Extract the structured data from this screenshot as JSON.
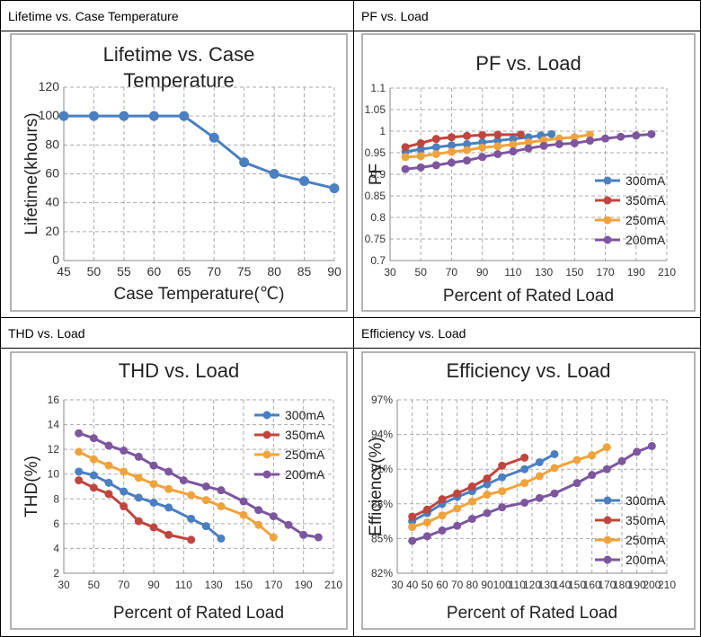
{
  "colors": {
    "s300": "#4a7fc1",
    "s350": "#c0453e",
    "s250": "#f0a33c",
    "s200": "#7d569e",
    "blue": "#4a7fc1"
  },
  "panels": [
    {
      "header": "Lifetime vs. Case Temperature"
    },
    {
      "header": "PF vs. Load"
    },
    {
      "header": "THD vs. Load"
    },
    {
      "header": "Efficiency vs. Load"
    }
  ],
  "chart_data": [
    {
      "type": "line",
      "title_lines": [
        "Lifetime vs. Case",
        "Temperature"
      ],
      "xlabel": "Case Temperature(℃)",
      "ylabel": "Lifetime(khours)",
      "xlim": [
        45,
        90
      ],
      "ylim": [
        0,
        120
      ],
      "x_ticks": [
        "45",
        "50",
        "55",
        "60",
        "65",
        "70",
        "75",
        "80",
        "85",
        "90"
      ],
      "y_ticks": [
        "0",
        "20",
        "40",
        "60",
        "80",
        "100",
        "120"
      ],
      "grid": true,
      "series": [
        {
          "values": [
            [
              45,
              100
            ],
            [
              50,
              100
            ],
            [
              55,
              100
            ],
            [
              60,
              100
            ],
            [
              65,
              100
            ],
            [
              70,
              85
            ],
            [
              75,
              68
            ],
            [
              80,
              60
            ],
            [
              85,
              55
            ],
            [
              90,
              50
            ]
          ]
        }
      ]
    },
    {
      "type": "line",
      "title_lines": [
        "PF vs. Load"
      ],
      "xlabel": "Percent of Rated Load",
      "ylabel": "PF",
      "xlim": [
        30,
        210
      ],
      "ylim": [
        0.7,
        1.1
      ],
      "x_ticks": [
        "30",
        "50",
        "70",
        "90",
        "110",
        "130",
        "150",
        "170",
        "190",
        "210"
      ],
      "y_ticks": [
        "0.7",
        "0.75",
        "0.8",
        "0.85",
        "0.9",
        "0.95",
        "1",
        "1.05",
        "1.1"
      ],
      "grid": true,
      "legend_position": "lower-right",
      "series": [
        {
          "name": "300mA",
          "values": [
            [
              40,
              0.952
            ],
            [
              50,
              0.958
            ],
            [
              60,
              0.963
            ],
            [
              70,
              0.967
            ],
            [
              80,
              0.97
            ],
            [
              90,
              0.974
            ],
            [
              100,
              0.978
            ],
            [
              110,
              0.982
            ],
            [
              120,
              0.986
            ],
            [
              128,
              0.99
            ],
            [
              135,
              0.993
            ]
          ]
        },
        {
          "name": "350mA",
          "values": [
            [
              40,
              0.963
            ],
            [
              50,
              0.972
            ],
            [
              60,
              0.982
            ],
            [
              70,
              0.986
            ],
            [
              80,
              0.989
            ],
            [
              90,
              0.991
            ],
            [
              100,
              0.992
            ],
            [
              115,
              0.992
            ]
          ]
        },
        {
          "name": "250mA",
          "values": [
            [
              40,
              0.94
            ],
            [
              50,
              0.942
            ],
            [
              60,
              0.947
            ],
            [
              70,
              0.952
            ],
            [
              80,
              0.956
            ],
            [
              90,
              0.962
            ],
            [
              100,
              0.965
            ],
            [
              110,
              0.969
            ],
            [
              120,
              0.974
            ],
            [
              130,
              0.979
            ],
            [
              140,
              0.983
            ],
            [
              150,
              0.986
            ],
            [
              160,
              0.992
            ]
          ]
        },
        {
          "name": "200mA",
          "values": [
            [
              40,
              0.912
            ],
            [
              50,
              0.916
            ],
            [
              60,
              0.921
            ],
            [
              70,
              0.927
            ],
            [
              80,
              0.932
            ],
            [
              90,
              0.94
            ],
            [
              100,
              0.947
            ],
            [
              110,
              0.953
            ],
            [
              120,
              0.96
            ],
            [
              130,
              0.966
            ],
            [
              140,
              0.97
            ],
            [
              150,
              0.972
            ],
            [
              160,
              0.978
            ],
            [
              170,
              0.983
            ],
            [
              180,
              0.987
            ],
            [
              190,
              0.99
            ],
            [
              200,
              0.993
            ]
          ]
        }
      ]
    },
    {
      "type": "line",
      "title_lines": [
        "THD vs. Load"
      ],
      "xlabel": "Percent of Rated Load",
      "ylabel": "THD(%)",
      "xlim": [
        30,
        210
      ],
      "ylim": [
        2,
        16
      ],
      "x_ticks": [
        "30",
        "50",
        "70",
        "90",
        "110",
        "130",
        "150",
        "170",
        "190",
        "210"
      ],
      "y_ticks": [
        "2",
        "4",
        "6",
        "8",
        "10",
        "12",
        "14",
        "16"
      ],
      "grid": true,
      "legend_position": "top-right",
      "series": [
        {
          "name": "300mA",
          "values": [
            [
              40,
              10.2
            ],
            [
              50,
              9.9
            ],
            [
              60,
              9.3
            ],
            [
              70,
              8.6
            ],
            [
              80,
              8.1
            ],
            [
              90,
              7.7
            ],
            [
              100,
              7.3
            ],
            [
              115,
              6.4
            ],
            [
              125,
              5.8
            ],
            [
              135,
              4.8
            ]
          ]
        },
        {
          "name": "350mA",
          "values": [
            [
              40,
              9.5
            ],
            [
              50,
              8.9
            ],
            [
              60,
              8.4
            ],
            [
              70,
              7.4
            ],
            [
              80,
              6.2
            ],
            [
              90,
              5.7
            ],
            [
              100,
              5.1
            ],
            [
              115,
              4.7
            ]
          ]
        },
        {
          "name": "250mA",
          "values": [
            [
              40,
              11.8
            ],
            [
              50,
              11.2
            ],
            [
              60,
              10.7
            ],
            [
              70,
              10.2
            ],
            [
              80,
              9.7
            ],
            [
              90,
              9.2
            ],
            [
              100,
              8.8
            ],
            [
              115,
              8.3
            ],
            [
              125,
              7.9
            ],
            [
              135,
              7.4
            ],
            [
              150,
              6.7
            ],
            [
              160,
              5.9
            ],
            [
              170,
              4.9
            ]
          ]
        },
        {
          "name": "200mA",
          "values": [
            [
              40,
              13.3
            ],
            [
              50,
              12.9
            ],
            [
              60,
              12.3
            ],
            [
              70,
              11.9
            ],
            [
              80,
              11.4
            ],
            [
              90,
              10.7
            ],
            [
              100,
              10.2
            ],
            [
              110,
              9.5
            ],
            [
              125,
              9.0
            ],
            [
              135,
              8.7
            ],
            [
              150,
              7.8
            ],
            [
              160,
              7.1
            ],
            [
              170,
              6.6
            ],
            [
              180,
              5.9
            ],
            [
              190,
              5.1
            ],
            [
              200,
              4.9
            ]
          ]
        }
      ]
    },
    {
      "type": "line",
      "title_lines": [
        "Efficiency vs. Load"
      ],
      "xlabel": "Percent of Rated Load",
      "ylabel": "Efficiency(%)",
      "xlim": [
        30,
        210
      ],
      "ylim": [
        82,
        97
      ],
      "x_ticks": [
        "30",
        "40",
        "50",
        "60",
        "70",
        "80",
        "90",
        "100",
        "110",
        "120",
        "130",
        "140",
        "150",
        "160",
        "170",
        "180",
        "190",
        "200",
        "210"
      ],
      "y_ticks": [
        "82%",
        "85%",
        "88%",
        "91%",
        "94%",
        "97%"
      ],
      "grid": true,
      "legend_position": "lower-right",
      "series": [
        {
          "name": "300mA",
          "values": [
            [
              40,
              86.5
            ],
            [
              50,
              87.2
            ],
            [
              60,
              88.0
            ],
            [
              70,
              88.6
            ],
            [
              80,
              89.1
            ],
            [
              90,
              89.7
            ],
            [
              100,
              90.3
            ],
            [
              115,
              91.0
            ],
            [
              125,
              91.6
            ],
            [
              135,
              92.3
            ]
          ]
        },
        {
          "name": "350mA",
          "values": [
            [
              40,
              86.9
            ],
            [
              50,
              87.5
            ],
            [
              60,
              88.4
            ],
            [
              70,
              88.9
            ],
            [
              80,
              89.5
            ],
            [
              90,
              90.2
            ],
            [
              100,
              91.3
            ],
            [
              115,
              92.0
            ]
          ]
        },
        {
          "name": "250mA",
          "values": [
            [
              40,
              86.0
            ],
            [
              50,
              86.4
            ],
            [
              60,
              87.0
            ],
            [
              70,
              87.6
            ],
            [
              80,
              88.2
            ],
            [
              90,
              88.8
            ],
            [
              100,
              89.1
            ],
            [
              115,
              89.8
            ],
            [
              125,
              90.4
            ],
            [
              135,
              91.1
            ],
            [
              150,
              91.8
            ],
            [
              160,
              92.2
            ],
            [
              170,
              92.9
            ]
          ]
        },
        {
          "name": "200mA",
          "values": [
            [
              40,
              84.8
            ],
            [
              50,
              85.2
            ],
            [
              60,
              85.7
            ],
            [
              70,
              86.1
            ],
            [
              80,
              86.7
            ],
            [
              90,
              87.2
            ],
            [
              100,
              87.7
            ],
            [
              115,
              88.1
            ],
            [
              125,
              88.5
            ],
            [
              135,
              88.9
            ],
            [
              150,
              89.8
            ],
            [
              160,
              90.5
            ],
            [
              170,
              91.0
            ],
            [
              180,
              91.7
            ],
            [
              190,
              92.5
            ],
            [
              200,
              93.0
            ]
          ]
        }
      ]
    }
  ]
}
